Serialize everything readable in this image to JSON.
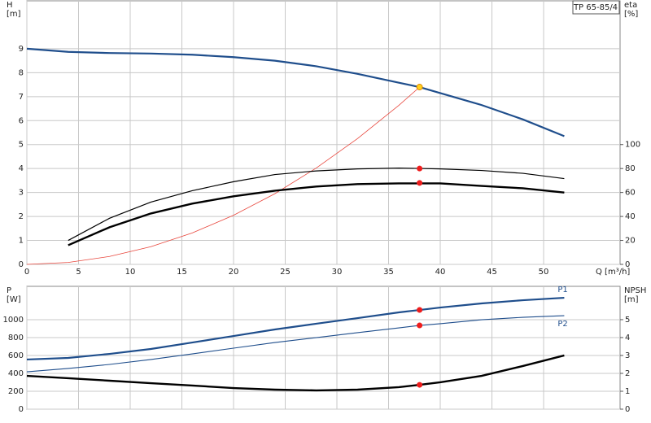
{
  "chart_data": [
    {
      "type": "line",
      "model_label": "TP 65-85/4",
      "y_label": [
        "H",
        "[m]"
      ],
      "y2_label": [
        "eta",
        "[%]"
      ],
      "x_label": "Q [m³/h]",
      "xlim": [
        0,
        57.4
      ],
      "xticks": [
        0,
        5,
        10,
        15,
        20,
        25,
        30,
        35,
        40,
        45,
        50
      ],
      "ylim": [
        0,
        11
      ],
      "yticks": [
        0,
        1,
        2,
        3,
        4,
        5,
        6,
        7,
        8,
        9
      ],
      "y2lim": [
        0,
        220
      ],
      "y2ticks": [
        0,
        20,
        40,
        60,
        80,
        100
      ],
      "grid": true,
      "series": [
        {
          "color": "#1f4e8c",
          "width": 2.2,
          "x": [
            0,
            4,
            8,
            12,
            16,
            20,
            24,
            28,
            32,
            36,
            38,
            40,
            44,
            48,
            52
          ],
          "values": [
            9.0,
            8.87,
            8.82,
            8.8,
            8.75,
            8.65,
            8.5,
            8.27,
            7.95,
            7.58,
            7.4,
            7.15,
            6.65,
            6.05,
            5.35
          ]
        },
        {
          "color": "#e8463c",
          "width": 0.8,
          "x": [
            0,
            4,
            8,
            12,
            16,
            20,
            24,
            28,
            32,
            36,
            38
          ],
          "values": [
            0,
            0.08,
            0.33,
            0.74,
            1.31,
            2.05,
            2.95,
            4.02,
            5.25,
            6.64,
            7.4
          ]
        },
        {
          "color": "#000000",
          "width": 1.2,
          "axis": "y2",
          "x": [
            4,
            8,
            12,
            16,
            20,
            24,
            28,
            32,
            36,
            40,
            44,
            48,
            52
          ],
          "values": [
            20,
            38.5,
            52,
            61.5,
            69,
            75,
            78,
            79.7,
            80.4,
            79.7,
            78.4,
            76,
            71.6
          ]
        },
        {
          "color": "#000000",
          "width": 2.4,
          "axis": "y2",
          "x": [
            4,
            8,
            12,
            16,
            20,
            24,
            28,
            32,
            36,
            40,
            44,
            48,
            52
          ],
          "values": [
            16,
            31,
            42.5,
            50.7,
            56.8,
            61.5,
            65,
            67,
            67.6,
            67.6,
            65.5,
            63.5,
            60
          ]
        },
        {
          "color": "#ffd21f",
          "marker": true,
          "x": [
            38
          ],
          "values": [
            7.4
          ]
        },
        {
          "color": "#ee1c1c",
          "marker": true,
          "axis": "y2",
          "x": [
            38,
            38
          ],
          "values": [
            80,
            68
          ]
        }
      ]
    },
    {
      "type": "line",
      "y_label": [
        "P",
        "[W]"
      ],
      "y2_label": [
        "NPSH",
        "[m]"
      ],
      "xlim": [
        0,
        57.4
      ],
      "ylim": [
        0,
        1373
      ],
      "yticks": [
        0,
        200,
        400,
        600,
        800,
        1000
      ],
      "y2lim": [
        0,
        6.86
      ],
      "y2ticks": [
        0,
        1,
        2,
        3,
        4,
        5
      ],
      "grid": true,
      "series": [
        {
          "name": "P1",
          "color": "#1f4e8c",
          "width": 2.2,
          "x": [
            0,
            4,
            8,
            12,
            16,
            20,
            24,
            28,
            32,
            36,
            38,
            40,
            44,
            48,
            52
          ],
          "values": [
            555,
            573,
            618,
            673,
            745,
            818,
            891,
            955,
            1018,
            1082,
            1109,
            1136,
            1182,
            1218,
            1245
          ]
        },
        {
          "name": "P2",
          "color": "#1f4e8c",
          "width": 1.1,
          "x": [
            0,
            4,
            8,
            12,
            16,
            20,
            24,
            28,
            32,
            36,
            38,
            40,
            44,
            48,
            52
          ],
          "values": [
            418,
            455,
            500,
            555,
            618,
            682,
            745,
            800,
            855,
            909,
            936,
            955,
            1000,
            1027,
            1045
          ]
        },
        {
          "color": "#000000",
          "width": 2.4,
          "axis": "y2",
          "x": [
            0,
            4,
            8,
            12,
            16,
            20,
            24,
            28,
            32,
            36,
            38,
            40,
            44,
            48,
            52
          ],
          "values": [
            1.86,
            1.73,
            1.59,
            1.45,
            1.32,
            1.18,
            1.09,
            1.05,
            1.09,
            1.23,
            1.36,
            1.5,
            1.86,
            2.41,
            3.0
          ]
        },
        {
          "color": "#ee1c1c",
          "marker": true,
          "x": [
            38,
            38
          ],
          "values": [
            1109,
            936
          ]
        },
        {
          "color": "#ee1c1c",
          "marker": true,
          "axis": "y2",
          "x": [
            38
          ],
          "values": [
            1.36
          ]
        }
      ]
    }
  ]
}
